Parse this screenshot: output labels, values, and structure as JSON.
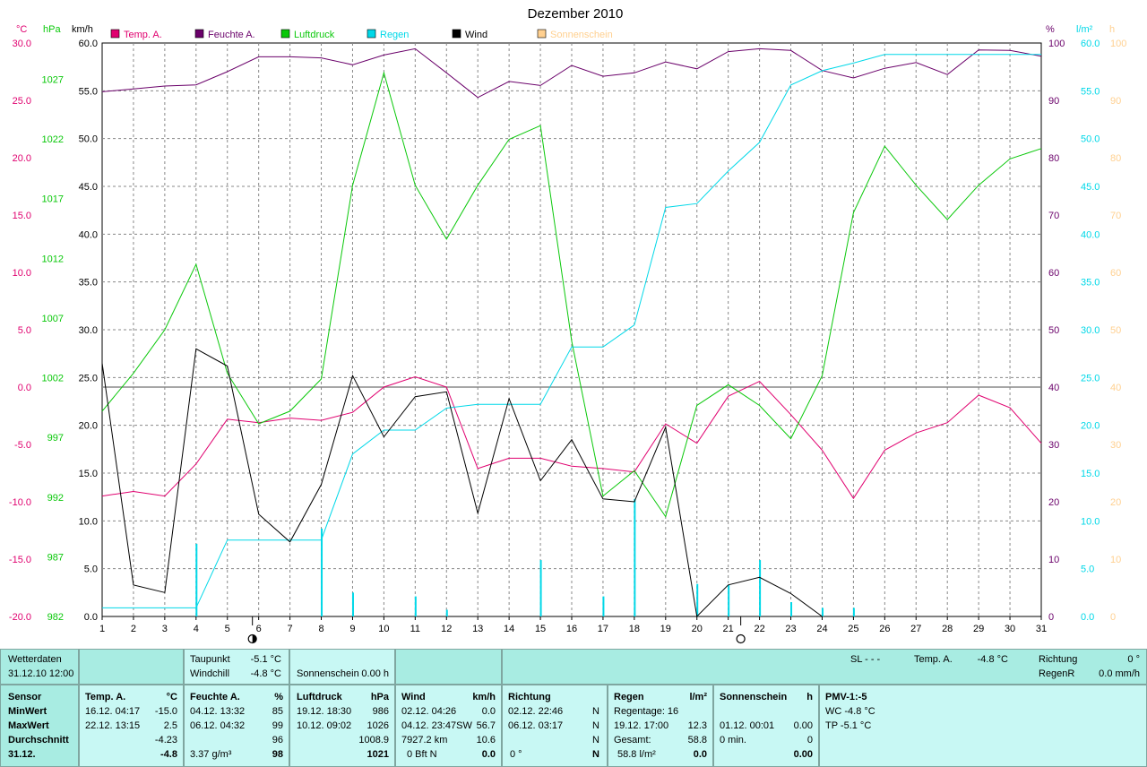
{
  "chart_data": {
    "type": "line",
    "title": "Dezember 2010",
    "categories": [
      "1",
      "2",
      "3",
      "4",
      "5",
      "6",
      "7",
      "8",
      "9",
      "10",
      "11",
      "12",
      "13",
      "14",
      "15",
      "16",
      "17",
      "18",
      "19",
      "20",
      "21",
      "22",
      "23",
      "24",
      "25",
      "26",
      "27",
      "28",
      "29",
      "30",
      "31"
    ],
    "axes": {
      "temp": {
        "unit": "°C",
        "min": -20,
        "max": 30,
        "ticks": [
          "30.0",
          "25.0",
          "20.0",
          "15.0",
          "10.0",
          "5.0",
          "0.0",
          "-5.0",
          "-10.0",
          "-15.0",
          "-20.0"
        ],
        "color": "#e0006f"
      },
      "press": {
        "unit": "hPa",
        "ticks": [
          "1027",
          "1022",
          "1017",
          "1012",
          "1007",
          "1002",
          "997",
          "992",
          "987",
          "982"
        ],
        "color": "#0ac80a"
      },
      "wind": {
        "unit": "km/h",
        "min": 0,
        "max": 60,
        "ticks": [
          "60.0",
          "55.0",
          "50.0",
          "45.0",
          "40.0",
          "35.0",
          "30.0",
          "25.0",
          "20.0",
          "15.0",
          "10.0",
          "5.0",
          "0.0"
        ],
        "color": "#000000"
      },
      "humid": {
        "unit": "%",
        "min": 0,
        "max": 100,
        "ticks": [
          "100",
          "90",
          "80",
          "70",
          "60",
          "50",
          "40",
          "30",
          "20",
          "10",
          "0"
        ],
        "color": "#6a006a"
      },
      "rain": {
        "unit": "l/m²",
        "min": 0,
        "max": 60,
        "ticks": [
          "60.0",
          "55.0",
          "50.0",
          "45.0",
          "40.0",
          "35.0",
          "30.0",
          "25.0",
          "20.0",
          "15.0",
          "10.0",
          "5.0",
          "0.0"
        ],
        "color": "#00d8e8"
      },
      "sun": {
        "unit": "h",
        "min": 0,
        "max": 100,
        "ticks": [
          "100",
          "90",
          "80",
          "70",
          "60",
          "50",
          "40",
          "30",
          "20",
          "10",
          "0"
        ],
        "color": "#ffd090"
      }
    },
    "legend": [
      "Temp. A.",
      "Feuchte A.",
      "Luftdruck",
      "Regen",
      "Wind",
      "Sonnenschein"
    ],
    "series": [
      {
        "name": "Temp. A.",
        "color": "#e0006f",
        "axis": "temp",
        "values": [
          -9.5,
          -9.1,
          -9.5,
          -6.7,
          -2.8,
          -3.1,
          -2.7,
          -2.9,
          -2.2,
          0.0,
          0.9,
          0.0,
          -7.1,
          -6.2,
          -6.2,
          -6.9,
          -7.1,
          -7.4,
          -3.2,
          -4.9,
          -0.8,
          0.5,
          -2.4,
          -5.5,
          -9.7,
          -5.5,
          -4.0,
          -3.1,
          -0.7,
          -1.8,
          -4.9
        ]
      },
      {
        "name": "Feuchte A.",
        "color": "#6a006a",
        "axis": "humid",
        "values": [
          91.5,
          92.0,
          92.5,
          92.7,
          95.0,
          97.6,
          97.6,
          97.4,
          96.2,
          97.9,
          99.0,
          94.8,
          90.5,
          93.3,
          92.6,
          96.1,
          94.2,
          94.8,
          96.7,
          95.5,
          98.5,
          99.0,
          98.7,
          95.2,
          93.9,
          95.6,
          96.6,
          94.5,
          98.8,
          98.7,
          97.7
        ]
      },
      {
        "name": "Luftdruck",
        "color": "#0ac80a",
        "axis": "temp",
        "values": [
          -2.1,
          1.2,
          5.0,
          10.7,
          1.2,
          -3.2,
          -2.1,
          0.7,
          17.6,
          27.4,
          17.6,
          12.9,
          17.6,
          21.6,
          22.8,
          4.0,
          -9.5,
          -7.3,
          -11.3,
          -1.6,
          0.2,
          -1.6,
          -4.5,
          1.0,
          15.2,
          21.0,
          17.6,
          14.6,
          17.6,
          19.9,
          20.8
        ]
      },
      {
        "name": "Regen",
        "color": "#00d8e8",
        "axis": "rain",
        "values": [
          0.9,
          0.9,
          0.9,
          0.9,
          8.0,
          8.0,
          8.0,
          8.0,
          17.0,
          19.5,
          19.5,
          21.8,
          22.2,
          22.2,
          22.2,
          28.2,
          28.2,
          30.5,
          42.8,
          43.2,
          46.6,
          49.6,
          55.6,
          57.1,
          57.9,
          58.8,
          58.8,
          58.8,
          58.8,
          58.8,
          58.8
        ]
      },
      {
        "name": "Wind",
        "color": "#000000",
        "axis": "wind",
        "values": [
          26.5,
          3.3,
          2.5,
          28.0,
          26.2,
          10.7,
          7.8,
          13.8,
          25.2,
          18.8,
          23.0,
          23.5,
          10.8,
          22.8,
          14.2,
          18.5,
          12.3,
          12.0,
          19.8,
          0.0,
          3.3,
          4.1,
          2.4,
          0.0,
          null,
          null,
          0.0,
          0.0,
          null,
          0.0,
          null
        ]
      },
      {
        "name": "Regen (täglich)",
        "color": "#00d8e8",
        "axis": "rain",
        "values": [
          0,
          0,
          0,
          0,
          7.6,
          0,
          0,
          0,
          9.2,
          2.5,
          0,
          2.1,
          0.7,
          0,
          0,
          5.9,
          0,
          2.1,
          12.3,
          0,
          3.4,
          3.3,
          5.9,
          1.5,
          0.9,
          0.9,
          0,
          0,
          0,
          0,
          0
        ]
      }
    ],
    "moon_markers": [
      {
        "day": 5.8,
        "phase": "new"
      },
      {
        "day": 21.4,
        "phase": "full"
      }
    ],
    "grid": true
  },
  "panel": {
    "row1": {
      "wetterdaten": "Wetterdaten",
      "datetime": "31.12.10 12:00",
      "taupunkt_label": "Taupunkt",
      "taupunkt_value": "-5.1 °C",
      "windchill_label": "Windchill",
      "windchill_value": "-4.8 °C",
      "sonnenschein": "Sonnenschein",
      "sonnenschein_value": "0.00 h",
      "sl": "SL - - -",
      "temp_label": "Temp. A.",
      "temp_value": "-4.8 °C",
      "richtung_label": "Richtung",
      "richtung_value": "0 °",
      "regenr_label": "RegenR",
      "regenr_value": "0.0 mm/h"
    },
    "row2": {
      "sensor": {
        "title": "Sensor",
        "min": "MinWert",
        "max": "MaxWert",
        "avg": "Durchschnitt",
        "date": "31.12."
      },
      "temp": {
        "title": "Temp. A.",
        "unit": "°C",
        "min_date": "16.12.  04:17",
        "min_val": "-15.0",
        "max_date": "22.12.  13:15",
        "max_val": "2.5",
        "avg": "-4.23",
        "cur": "-4.8"
      },
      "feuchte": {
        "title": "Feuchte A.",
        "unit": "%",
        "min_date": "04.12.  13:32",
        "min_val": "85",
        "max_date": "06.12.  04:32",
        "max_val": "99",
        "avg": "96",
        "abs": "3.37 g/m³",
        "cur": "98"
      },
      "luftdruck": {
        "title": "Luftdruck",
        "unit": "hPa",
        "min_date": "19.12.  18:30",
        "min_val": "986",
        "max_date": "10.12.  09:02",
        "max_val": "1026",
        "avg": "1008.9",
        "cur": "1021"
      },
      "wind": {
        "title": "Wind",
        "unit": "km/h",
        "min_date": "02.12.  04:26",
        "min_val": "0.0",
        "max_date": "04.12.  23:47SW",
        "max_val": "56.7",
        "dist": "7927.2 km",
        "avg": "10.6",
        "bft": "0 Bft N",
        "cur": "0.0"
      },
      "richtung": {
        "title": "Richtung",
        "min_date": "02.12.  22:46",
        "min_dir": "N",
        "max_date": "06.12.  03:17",
        "max_dir": "N",
        "avg_dir": "N",
        "cur_deg": "0 °",
        "cur_dir": "N"
      },
      "regen": {
        "title": "Regen",
        "unit": "l/m²",
        "regentage": "Regentage: 16",
        "max_date": "19.12.  17:00",
        "max_val": "12.3",
        "gesamt_label": "Gesamt:",
        "gesamt": "58.8",
        "cur_sum": "58.8 l/m²",
        "cur": "0.0"
      },
      "sonne": {
        "title": "Sonnenschein",
        "unit": "h",
        "max_date": "01.12.  00:01",
        "max_val": "0.00",
        "min_label": "0 min.",
        "min_val": "0",
        "cur": "0.00"
      },
      "pmv": {
        "title": "PMV-1:-5",
        "wc": "WC -4.8 °C",
        "tp": "TP -5.1 °C"
      }
    }
  }
}
